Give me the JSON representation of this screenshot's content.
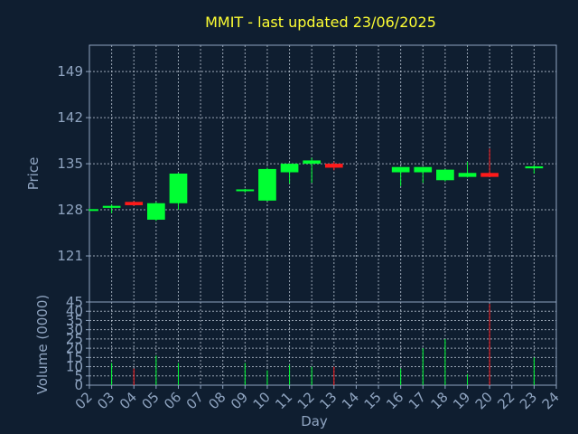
{
  "chart_data": {
    "type": "candlestick",
    "title": "MMIT - last updated 23/06/2025",
    "xlabel": "Day",
    "price_ylabel": "Price",
    "volume_ylabel": "Volume (0000)",
    "x_ticks": [
      "02",
      "03",
      "04",
      "05",
      "06",
      "07",
      "08",
      "09",
      "10",
      "11",
      "12",
      "13",
      "14",
      "15",
      "16",
      "17",
      "18",
      "19",
      "20",
      "22",
      "23",
      "24"
    ],
    "price_ticks": [
      121,
      128,
      135,
      142,
      149
    ],
    "price_ylim": [
      114,
      153
    ],
    "volume_ticks": [
      0,
      5,
      10,
      15,
      20,
      25,
      30,
      35,
      40,
      45
    ],
    "volume_ylim": [
      0,
      45
    ],
    "up_color": "#00ff33",
    "down_color": "#ff1a1a",
    "candles": [
      {
        "day": "02",
        "open": 128.0,
        "high": 128.2,
        "low": 127.8,
        "close": 128.1,
        "volume": 0
      },
      {
        "day": "03",
        "open": 128.3,
        "high": 128.8,
        "low": 127.5,
        "close": 128.6,
        "volume": 12
      },
      {
        "day": "04",
        "open": 129.2,
        "high": 129.3,
        "low": 128.6,
        "close": 128.7,
        "volume": 9
      },
      {
        "day": "05",
        "open": 126.5,
        "high": 129.2,
        "low": 126.3,
        "close": 129.0,
        "volume": 16
      },
      {
        "day": "06",
        "open": 129.0,
        "high": 133.6,
        "low": 128.0,
        "close": 133.5,
        "volume": 12
      },
      {
        "day": "09",
        "open": 130.9,
        "high": 131.2,
        "low": 130.6,
        "close": 131.1,
        "volume": 12
      },
      {
        "day": "10",
        "open": 129.4,
        "high": 134.4,
        "low": 129.3,
        "close": 134.2,
        "volume": 8
      },
      {
        "day": "11",
        "open": 133.7,
        "high": 135.0,
        "low": 132.0,
        "close": 135.0,
        "volume": 11
      },
      {
        "day": "12",
        "open": 135.0,
        "high": 135.9,
        "low": 132.1,
        "close": 135.5,
        "volume": 10
      },
      {
        "day": "13",
        "open": 135.0,
        "high": 135.3,
        "low": 134.0,
        "close": 134.4,
        "volume": 10
      },
      {
        "day": "16",
        "open": 133.7,
        "high": 134.5,
        "low": 131.6,
        "close": 134.5,
        "volume": 9
      },
      {
        "day": "17",
        "open": 133.7,
        "high": 134.5,
        "low": 132.1,
        "close": 134.5,
        "volume": 20
      },
      {
        "day": "18",
        "open": 132.5,
        "high": 134.2,
        "low": 132.3,
        "close": 134.1,
        "volume": 25
      },
      {
        "day": "19",
        "open": 133.0,
        "high": 135.3,
        "low": 132.9,
        "close": 133.6,
        "volume": 6
      },
      {
        "day": "20",
        "open": 133.6,
        "high": 137.3,
        "low": 133.0,
        "close": 133.0,
        "volume": 44
      },
      {
        "day": "23",
        "open": 134.3,
        "high": 134.8,
        "low": 133.5,
        "close": 134.6,
        "volume": 15
      }
    ]
  }
}
